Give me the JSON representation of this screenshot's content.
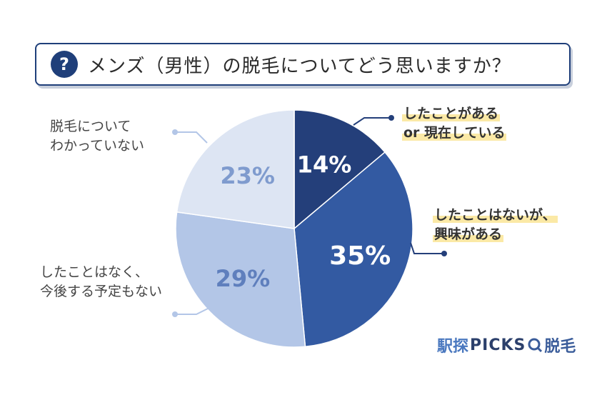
{
  "header": {
    "badge": "?",
    "title": "メンズ（男性）の脱毛についてどう思いますか？"
  },
  "chart_data": {
    "type": "pie",
    "slices": [
      {
        "label_lines": [
          "したことがある",
          "or 現在している"
        ],
        "value": 14,
        "value_label": "14%",
        "color": "#243f7a"
      },
      {
        "label_lines": [
          "したことはないが、",
          "興味がある"
        ],
        "value": 35,
        "value_label": "35%",
        "color": "#335aa2"
      },
      {
        "label_lines": [
          "したことはなく、",
          "今後する予定もない"
        ],
        "value": 29,
        "value_label": "29%",
        "color": "#b3c6e7"
      },
      {
        "label_lines": [
          "脱毛について",
          "わかっていない"
        ],
        "value": 23,
        "value_label": "23%",
        "color": "#dde5f3"
      }
    ]
  },
  "brand": {
    "part1": "駅探",
    "part2": "PICKS",
    "part3": "脱毛"
  }
}
